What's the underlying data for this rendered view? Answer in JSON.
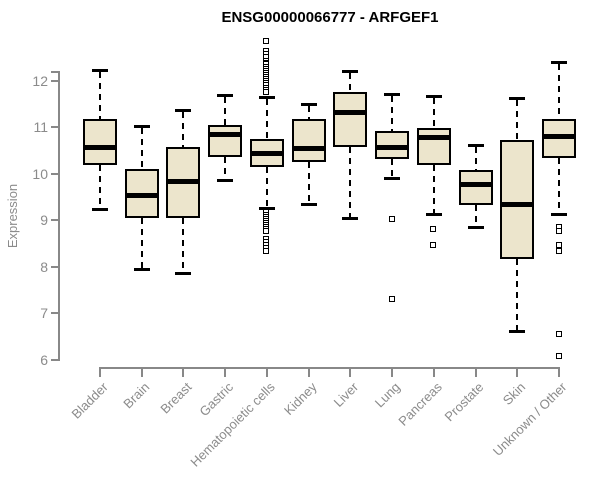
{
  "chart_data": {
    "type": "boxplot",
    "title": "ENSG00000066777 - ARFGEF1",
    "xlabel": "",
    "ylabel": "Expression",
    "ylim": [
      6,
      12.9
    ],
    "yticks": [
      6,
      7,
      8,
      9,
      10,
      11,
      12
    ],
    "grid": false,
    "legend": "none",
    "colors": {
      "box_fill": "#ECE5CC",
      "box_border": "#000000",
      "median": "#000000",
      "axis": "#888888",
      "tick_text": "#8b8b8b",
      "title_text": "#000000",
      "background": "#ffffff"
    },
    "categories": [
      "Bladder",
      "Brain",
      "Breast",
      "Gastric",
      "Hematopoietic cells",
      "Kidney",
      "Liver",
      "Lung",
      "Pancreas",
      "Prostate",
      "Skin",
      "Unknown / Other"
    ],
    "series": [
      {
        "name": "Bladder",
        "whisker_high": 12.22,
        "q3": 11.17,
        "median": 10.57,
        "q1": 10.18,
        "whisker_low": 9.25,
        "outliers": []
      },
      {
        "name": "Brain",
        "whisker_high": 11.02,
        "q3": 10.1,
        "median": 9.53,
        "q1": 9.05,
        "whisker_low": 7.95,
        "outliers": []
      },
      {
        "name": "Breast",
        "whisker_high": 11.37,
        "q3": 10.58,
        "median": 9.84,
        "q1": 9.06,
        "whisker_low": 7.86,
        "outliers": []
      },
      {
        "name": "Gastric",
        "whisker_high": 11.7,
        "q3": 11.04,
        "median": 10.84,
        "q1": 10.37,
        "whisker_low": 9.87,
        "outliers": []
      },
      {
        "name": "Hematopoietic cells",
        "whisker_high": 11.66,
        "q3": 10.75,
        "median": 10.44,
        "q1": 10.15,
        "whisker_low": 9.26,
        "outliers": [
          12.85,
          12.62,
          12.56,
          12.5,
          12.42,
          12.38,
          12.34,
          12.29,
          12.25,
          12.2,
          12.16,
          12.11,
          12.07,
          12.02,
          11.98,
          11.93,
          11.89,
          11.84,
          11.8,
          11.75,
          9.16,
          9.11,
          9.07,
          9.02,
          8.98,
          8.93,
          8.89,
          8.84,
          8.8,
          8.75,
          8.58,
          8.52,
          8.46,
          8.4,
          8.34
        ]
      },
      {
        "name": "Kidney",
        "whisker_high": 11.51,
        "q3": 11.17,
        "median": 10.55,
        "q1": 10.25,
        "whisker_low": 9.35,
        "outliers": []
      },
      {
        "name": "Liver",
        "whisker_high": 12.21,
        "q3": 11.75,
        "median": 11.32,
        "q1": 10.58,
        "whisker_low": 9.04,
        "outliers": []
      },
      {
        "name": "Lung",
        "whisker_high": 11.71,
        "q3": 10.92,
        "median": 10.56,
        "q1": 10.32,
        "whisker_low": 9.9,
        "outliers": [
          9.02,
          7.29
        ]
      },
      {
        "name": "Pancreas",
        "whisker_high": 11.67,
        "q3": 10.98,
        "median": 10.78,
        "q1": 10.19,
        "whisker_low": 9.14,
        "outliers": [
          8.81,
          8.45
        ]
      },
      {
        "name": "Prostate",
        "whisker_high": 10.62,
        "q3": 10.08,
        "median": 9.77,
        "q1": 9.34,
        "whisker_low": 8.85,
        "outliers": []
      },
      {
        "name": "Skin",
        "whisker_high": 11.62,
        "q3": 10.73,
        "median": 9.33,
        "q1": 8.18,
        "whisker_low": 6.62,
        "outliers": []
      },
      {
        "name": "Unknown / Other",
        "whisker_high": 12.41,
        "q3": 11.17,
        "median": 10.8,
        "q1": 10.33,
        "whisker_low": 9.13,
        "outliers": [
          8.85,
          8.76,
          8.46,
          8.33,
          6.55,
          6.08
        ]
      }
    ]
  }
}
